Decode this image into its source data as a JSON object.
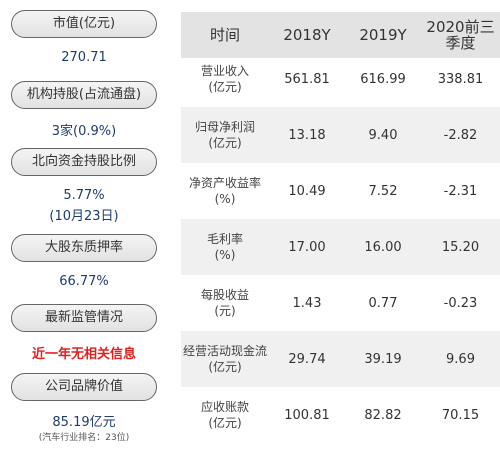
{
  "sidebar": {
    "market_cap_label": "市值(亿元)",
    "market_cap_value": "270.71",
    "inst_label": "机构持股(占流通盘)",
    "inst_value": "3家(0.9%)",
    "north_label": "北向资金持股比例",
    "north_value": "5.77%",
    "north_date": "(10月23日)",
    "pledge_label": "大股东质押率",
    "pledge_value": "66.77%",
    "reg_label": "最新监管情况",
    "reg_value": "近一年无相关信息",
    "brand_label": "公司品牌价值",
    "brand_value": "85.19亿元",
    "brand_rank": "(汽车行业排名：23位)"
  },
  "table": {
    "headers": [
      "时间",
      "2018Y",
      "2019Y",
      "2020前三季度"
    ],
    "rows": [
      {
        "label1": "营业收入",
        "label2": "(亿元)",
        "v2018": "561.81",
        "v2019": "616.99",
        "v2020": "338.81"
      },
      {
        "label1": "归母净利润",
        "label2": "(亿元)",
        "v2018": "13.18",
        "v2019": "9.40",
        "v2020": "-2.82"
      },
      {
        "label1": "净资产收益率",
        "label2": "(%)",
        "v2018": "10.49",
        "v2019": "7.52",
        "v2020": "-2.31"
      },
      {
        "label1": "毛利率",
        "label2": "(%)",
        "v2018": "17.00",
        "v2019": "16.00",
        "v2020": "15.20"
      },
      {
        "label1": "每股收益",
        "label2": "(元)",
        "v2018": "1.43",
        "v2019": "0.77",
        "v2020": "-0.23"
      },
      {
        "label1": "经营活动现金流",
        "label2": "(亿元)",
        "v2018": "29.74",
        "v2019": "39.19",
        "v2020": "9.69"
      },
      {
        "label1": "应收账款",
        "label2": "(亿元)",
        "v2018": "100.81",
        "v2019": "82.82",
        "v2020": "70.15"
      }
    ]
  }
}
